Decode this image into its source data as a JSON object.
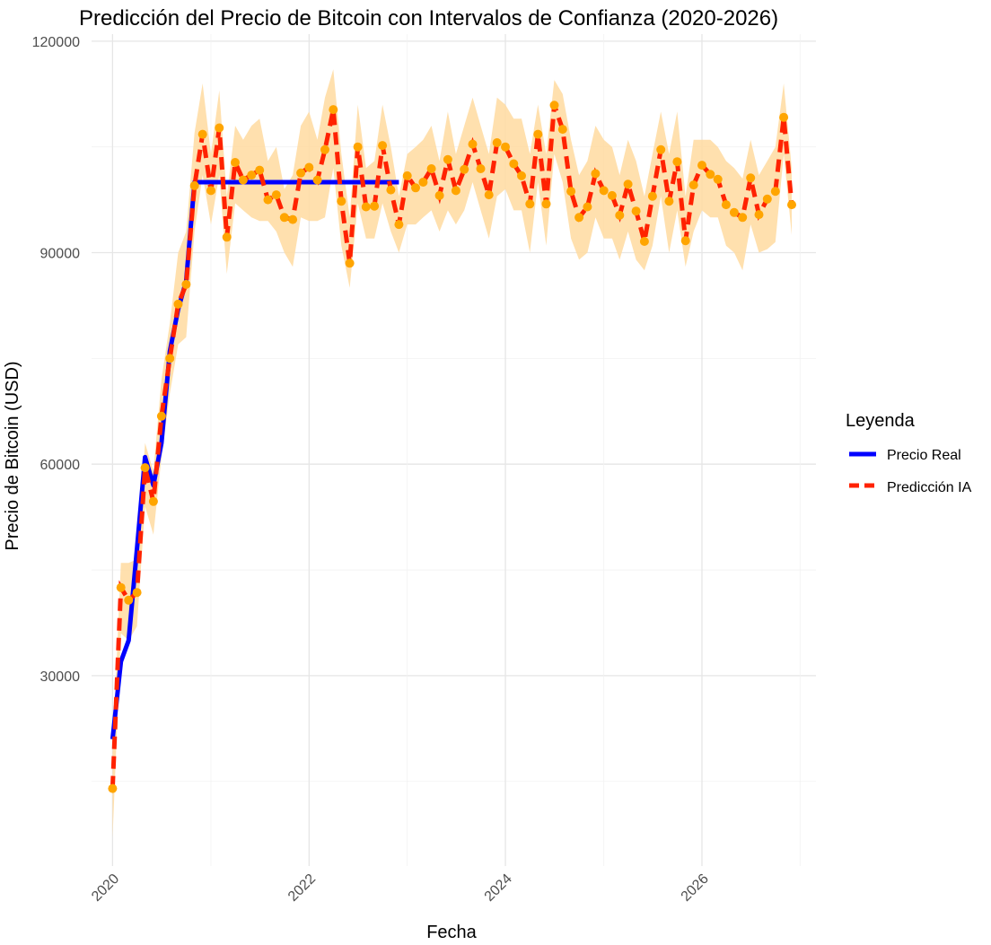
{
  "chart_data": {
    "type": "line",
    "title": "Predicción del Precio de Bitcoin con Intervalos de Confianza (2020-2026)",
    "xlabel": "Fecha",
    "ylabel": "Precio de Bitcoin (USD)",
    "xlim": [
      "2019-10-15",
      "2027-03-01"
    ],
    "ylim": [
      3000,
      121000
    ],
    "x_ticks": [
      "2020-01-01",
      "2022-01-01",
      "2024-01-01",
      "2026-01-01"
    ],
    "x_tick_labels": [
      "2020",
      "2022",
      "2024",
      "2026"
    ],
    "y_ticks": [
      30000,
      60000,
      90000,
      120000
    ],
    "y_tick_labels": [
      "30000",
      "60000",
      "90000",
      "120000"
    ],
    "grid": true,
    "legend": {
      "title": "Leyenda",
      "placement": "right",
      "entries": [
        "Precio Real",
        "Predicción IA"
      ]
    },
    "colors": {
      "real": "#0000ff",
      "prediction": "#ff2200",
      "points": "#ffa500",
      "band": "#ffdba0"
    },
    "series": [
      {
        "name": "Precio Real",
        "x": [
          "2020-01-01",
          "2020-02-01",
          "2020-03-01",
          "2020-04-01",
          "2020-05-01",
          "2020-06-01",
          "2020-07-01",
          "2020-08-01",
          "2020-09-01",
          "2020-10-01",
          "2020-11-01",
          "2020-12-01",
          "2021-06-01",
          "2022-01-01",
          "2022-06-01",
          "2022-12-01"
        ],
        "values": [
          21000,
          32000,
          35000,
          48000,
          61000,
          57000,
          63000,
          76000,
          82000,
          86000,
          100000,
          100000,
          100000,
          100000,
          100000,
          100000
        ]
      },
      {
        "name": "Predicción IA",
        "x": [
          "2020-01-01",
          "2020-02-01",
          "2020-03-01",
          "2020-04-01",
          "2020-05-01",
          "2020-06-01",
          "2020-07-01",
          "2020-08-01",
          "2020-09-01",
          "2020-10-01",
          "2020-11-01",
          "2020-12-01",
          "2021-01-01",
          "2021-02-01",
          "2021-03-01",
          "2021-04-01",
          "2021-05-01",
          "2021-06-01",
          "2021-07-01",
          "2021-08-01",
          "2021-09-01",
          "2021-10-01",
          "2021-11-01",
          "2021-12-01",
          "2022-01-01",
          "2022-02-01",
          "2022-03-01",
          "2022-04-01",
          "2022-05-01",
          "2022-06-01",
          "2022-07-01",
          "2022-08-01",
          "2022-09-01",
          "2022-10-01",
          "2022-11-01",
          "2022-12-01",
          "2023-01-01",
          "2023-02-01",
          "2023-03-01",
          "2023-04-01",
          "2023-05-01",
          "2023-06-01",
          "2023-07-01",
          "2023-08-01",
          "2023-09-01",
          "2023-10-01",
          "2023-11-01",
          "2023-12-01",
          "2024-01-01",
          "2024-02-01",
          "2024-03-01",
          "2024-04-01",
          "2024-05-01",
          "2024-06-01",
          "2024-07-01",
          "2024-08-01",
          "2024-09-01",
          "2024-10-01",
          "2024-11-01",
          "2024-12-01",
          "2025-01-01",
          "2025-02-01",
          "2025-03-01",
          "2025-04-01",
          "2025-05-01",
          "2025-06-01",
          "2025-07-01",
          "2025-08-01",
          "2025-09-01",
          "2025-10-01",
          "2025-11-01",
          "2025-12-01",
          "2026-01-01",
          "2026-02-01",
          "2026-03-01",
          "2026-04-01",
          "2026-05-01",
          "2026-06-01",
          "2026-07-01",
          "2026-08-01",
          "2026-09-01",
          "2026-10-01",
          "2026-11-01",
          "2026-12-01"
        ],
        "values": [
          14000,
          42500,
          40700,
          41800,
          59500,
          54700,
          66800,
          75000,
          82700,
          85500,
          99500,
          106800,
          98800,
          107700,
          92200,
          102800,
          100300,
          101000,
          101700,
          97500,
          98200,
          95000,
          94700,
          101300,
          102100,
          100300,
          104600,
          110300,
          97300,
          88500,
          105000,
          96500,
          96600,
          105200,
          98900,
          94000,
          100900,
          99200,
          100000,
          101900,
          98100,
          103200,
          98800,
          101800,
          105400,
          101900,
          98200,
          105600,
          105000,
          102600,
          100900,
          96900,
          106800,
          96900,
          110900,
          107500,
          98700,
          95000,
          96500,
          101200,
          98800,
          98100,
          95300,
          99700,
          95900,
          91600,
          98000,
          104600,
          97300,
          102900,
          91700,
          99600,
          102400,
          101100,
          100400,
          96800,
          95700,
          95000,
          100600,
          95400,
          97600,
          98700,
          109200,
          96800
        ]
      }
    ],
    "confidence_interval": {
      "x": [
        "2020-01-01",
        "2020-02-01",
        "2020-03-01",
        "2020-04-01",
        "2020-05-01",
        "2020-06-01",
        "2020-07-01",
        "2020-08-01",
        "2020-09-01",
        "2020-10-01",
        "2020-11-01",
        "2020-12-01",
        "2021-01-01",
        "2021-02-01",
        "2021-03-01",
        "2021-04-01",
        "2021-05-01",
        "2021-06-01",
        "2021-07-01",
        "2021-08-01",
        "2021-09-01",
        "2021-10-01",
        "2021-11-01",
        "2021-12-01",
        "2022-01-01",
        "2022-02-01",
        "2022-03-01",
        "2022-04-01",
        "2022-05-01",
        "2022-06-01",
        "2022-07-01",
        "2022-08-01",
        "2022-09-01",
        "2022-10-01",
        "2022-11-01",
        "2022-12-01",
        "2023-01-01",
        "2023-02-01",
        "2023-03-01",
        "2023-04-01",
        "2023-05-01",
        "2023-06-01",
        "2023-07-01",
        "2023-08-01",
        "2023-09-01",
        "2023-10-01",
        "2023-11-01",
        "2023-12-01",
        "2024-01-01",
        "2024-02-01",
        "2024-03-01",
        "2024-04-01",
        "2024-05-01",
        "2024-06-01",
        "2024-07-01",
        "2024-08-01",
        "2024-09-01",
        "2024-10-01",
        "2024-11-01",
        "2024-12-01",
        "2025-01-01",
        "2025-02-01",
        "2025-03-01",
        "2025-04-01",
        "2025-05-01",
        "2025-06-01",
        "2025-07-01",
        "2025-08-01",
        "2025-09-01",
        "2025-10-01",
        "2025-11-01",
        "2025-12-01",
        "2026-01-01",
        "2026-02-01",
        "2026-03-01",
        "2026-04-01",
        "2026-05-01",
        "2026-06-01",
        "2026-07-01",
        "2026-08-01",
        "2026-09-01",
        "2026-10-01",
        "2026-11-01",
        "2026-12-01"
      ],
      "lower": [
        7000,
        36000,
        35000,
        37000,
        54000,
        50000,
        61000,
        70000,
        77000,
        78000,
        93000,
        101000,
        94000,
        101000,
        87000,
        97000,
        96000,
        95000,
        94500,
        94500,
        93000,
        90000,
        88000,
        95000,
        94500,
        94500,
        95000,
        102000,
        91000,
        85000,
        97000,
        92000,
        92000,
        97000,
        93000,
        90000,
        94000,
        94000,
        95000,
        96000,
        93000,
        96000,
        94000,
        96000,
        100000,
        96000,
        92000,
        98000,
        99000,
        96000,
        96000,
        90000,
        100000,
        91000,
        104000,
        100000,
        92000,
        89000,
        90000,
        95000,
        92000,
        92000,
        89000,
        93000,
        89000,
        87500,
        91000,
        98000,
        90000,
        96000,
        88000,
        93000,
        96000,
        95000,
        95000,
        91000,
        90000,
        87500,
        94000,
        90000,
        90500,
        91500,
        104000,
        92500
      ],
      "upper": [
        19000,
        46000,
        46000,
        46500,
        63000,
        59000,
        72000,
        80000,
        90000,
        93000,
        107000,
        114000,
        104000,
        113000,
        98000,
        108000,
        106000,
        108000,
        109000,
        103000,
        105000,
        99000,
        101000,
        108000,
        110000,
        106000,
        112000,
        116000,
        104000,
        95000,
        111000,
        102000,
        103000,
        111000,
        105000,
        98000,
        104000,
        105000,
        106000,
        108000,
        103000,
        110000,
        104000,
        108000,
        112000,
        108000,
        104000,
        112000,
        111000,
        109000,
        109000,
        104000,
        111000,
        104000,
        114500,
        112500,
        106000,
        101000,
        103000,
        108000,
        106000,
        105000,
        101000,
        106000,
        103000,
        98000,
        104000,
        110000,
        104000,
        110000,
        98000,
        106000,
        106000,
        106000,
        105000,
        103000,
        102000,
        100500,
        106000,
        101000,
        103000,
        105000,
        114000,
        102000
      ]
    }
  }
}
